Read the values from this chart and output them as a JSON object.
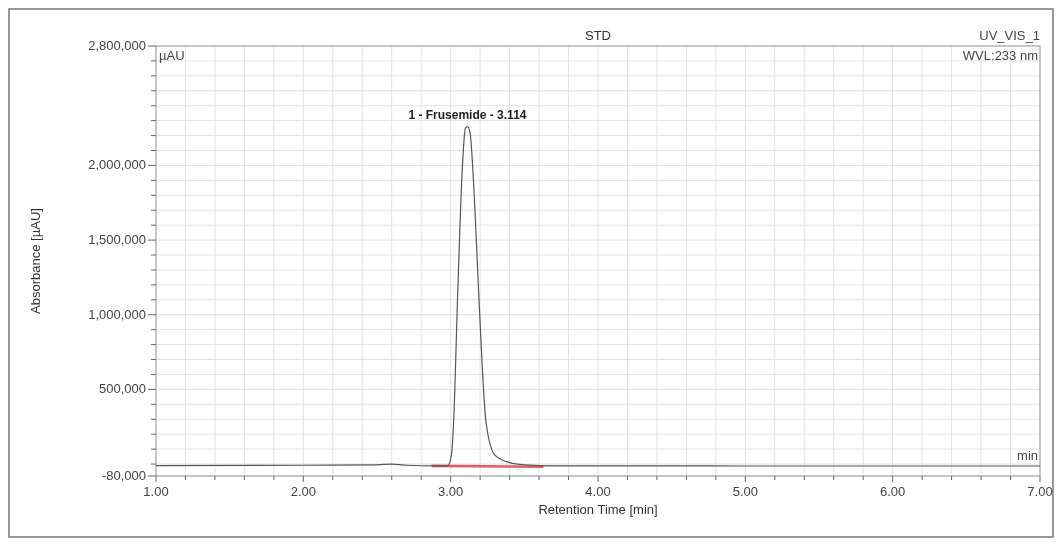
{
  "chart_data": {
    "type": "line",
    "title": "STD",
    "xlabel": "Retention Time [min]",
    "ylabel": "Absorbance [µAU]",
    "annotations": [
      "UV_VIS_1",
      "WVL:233 nm",
      "µAU",
      "min",
      {
        "text": "1 - Frusemide - 3.114",
        "x": 3.114,
        "y": 2260000
      }
    ],
    "xlim": [
      1,
      7
    ],
    "ylim": [
      -80000,
      2800000
    ],
    "xticks": [
      {
        "value": 1,
        "label": "1.00"
      },
      {
        "value": 1.2,
        "label": null
      },
      {
        "value": 1.4,
        "label": null
      },
      {
        "value": 1.6,
        "label": null
      },
      {
        "value": 1.8,
        "label": null
      },
      {
        "value": 2,
        "label": "2.00"
      },
      {
        "value": 2.2,
        "label": null
      },
      {
        "value": 2.4,
        "label": null
      },
      {
        "value": 2.6,
        "label": null
      },
      {
        "value": 2.8,
        "label": null
      },
      {
        "value": 3,
        "label": "3.00"
      },
      {
        "value": 3.2,
        "label": null
      },
      {
        "value": 3.4,
        "label": null
      },
      {
        "value": 3.6,
        "label": null
      },
      {
        "value": 3.8,
        "label": null
      },
      {
        "value": 4,
        "label": "4.00"
      },
      {
        "value": 4.2,
        "label": null
      },
      {
        "value": 4.4,
        "label": null
      },
      {
        "value": 4.6,
        "label": null
      },
      {
        "value": 4.8,
        "label": null
      },
      {
        "value": 5,
        "label": "5.00"
      },
      {
        "value": 5.2,
        "label": null
      },
      {
        "value": 5.4,
        "label": null
      },
      {
        "value": 5.6,
        "label": null
      },
      {
        "value": 5.8,
        "label": null
      },
      {
        "value": 6,
        "label": "6.00"
      },
      {
        "value": 6.2,
        "label": null
      },
      {
        "value": 6.4,
        "label": null
      },
      {
        "value": 6.6,
        "label": null
      },
      {
        "value": 6.8,
        "label": null
      },
      {
        "value": 7,
        "label": "7.00"
      }
    ],
    "yticks": [
      {
        "value": -80000,
        "label": "-80,000"
      },
      {
        "value": 0,
        "label": null
      },
      {
        "value": 100000,
        "label": null
      },
      {
        "value": 200000,
        "label": null
      },
      {
        "value": 300000,
        "label": null
      },
      {
        "value": 400000,
        "label": null
      },
      {
        "value": 500000,
        "label": "500,000"
      },
      {
        "value": 600000,
        "label": null
      },
      {
        "value": 700000,
        "label": null
      },
      {
        "value": 800000,
        "label": null
      },
      {
        "value": 900000,
        "label": null
      },
      {
        "value": 1000000,
        "label": "1,000,000"
      },
      {
        "value": 1100000,
        "label": null
      },
      {
        "value": 1200000,
        "label": null
      },
      {
        "value": 1300000,
        "label": null
      },
      {
        "value": 1400000,
        "label": null
      },
      {
        "value": 1500000,
        "label": "1,500,000"
      },
      {
        "value": 1600000,
        "label": null
      },
      {
        "value": 1700000,
        "label": null
      },
      {
        "value": 1800000,
        "label": null
      },
      {
        "value": 1900000,
        "label": null
      },
      {
        "value": 2000000,
        "label": "2,000,000"
      },
      {
        "value": 2100000,
        "label": null
      },
      {
        "value": 2200000,
        "label": null
      },
      {
        "value": 2300000,
        "label": null
      },
      {
        "value": 2400000,
        "label": null
      },
      {
        "value": 2500000,
        "label": null
      },
      {
        "value": 2600000,
        "label": null
      },
      {
        "value": 2700000,
        "label": null
      },
      {
        "value": 2800000,
        "label": "2,800,000"
      }
    ],
    "grid": true,
    "series": [
      {
        "color": "#555555",
        "x": [
          1,
          2,
          2.5,
          2.6,
          2.7,
          2.9,
          2.98,
          3.005,
          3.02,
          3.048,
          3.08,
          3.1,
          3.114,
          3.13,
          3.16,
          3.19,
          3.24,
          3.3,
          3.4,
          3.5,
          3.7,
          4.5,
          5,
          7
        ],
        "values": [
          -10000,
          -8000,
          -5000,
          0,
          -8000,
          -12000,
          -10000,
          60000,
          280000,
          1150000,
          2000000,
          2250000,
          2260000,
          2230000,
          1800000,
          1150000,
          280000,
          60000,
          10000,
          -5000,
          -12000,
          -12000,
          -13000,
          -13000
        ]
      },
      {
        "color": "#e06060",
        "x": [
          2.87,
          3.63
        ],
        "values": [
          -12000,
          -18000
        ]
      }
    ]
  }
}
